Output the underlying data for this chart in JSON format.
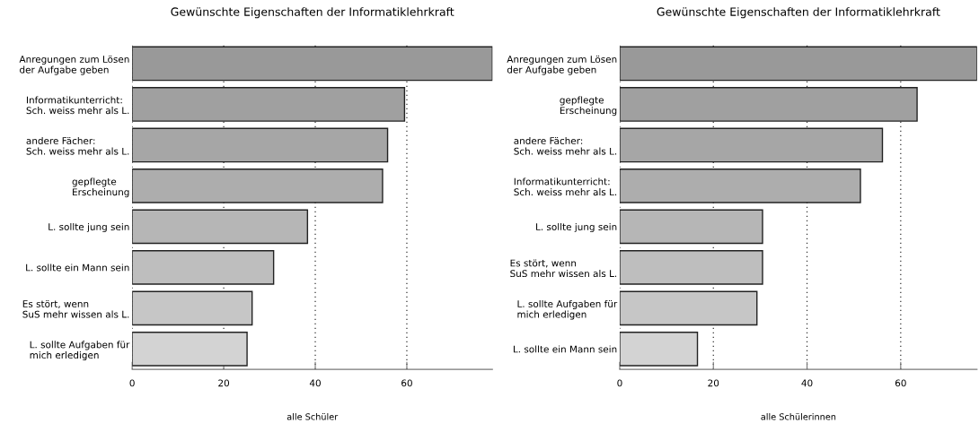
{
  "chart_data": [
    {
      "type": "bar",
      "orientation": "horizontal",
      "title": "Gewünschte Eigenschaften der Informatiklehrkraft",
      "xlabel": "alle Schüler",
      "categories": [
        "Anregungen zum Lösen\nder Aufgabe geben",
        "Informatikunterricht:\nSch. weiss mehr als L.",
        "andere Fächer:\nSch. weiss mehr als L.",
        "gepflegte\nErscheinung",
        "L. sollte jung sein",
        "L. sollte ein Mann sein",
        "Es stört, wenn\nSuS mehr wissen als L.",
        "L. sollte Aufgaben für\nmich erledigen"
      ],
      "values": [
        78.7,
        59.5,
        55.8,
        54.7,
        38.3,
        30.9,
        26.2,
        25.1
      ],
      "colors": [
        "#999999",
        "#a0a0a0",
        "#a6a6a6",
        "#adadad",
        "#b6b6b6",
        "#bebebe",
        "#c6c6c6",
        "#d3d3d3"
      ],
      "xlim": [
        0,
        78.7
      ],
      "xticks": [
        0,
        20,
        40,
        60
      ],
      "grid": "x"
    },
    {
      "type": "bar",
      "orientation": "horizontal",
      "title": "Gewünschte Eigenschaften der Informatiklehrkraft",
      "xlabel": "alle Schülerinnen",
      "categories": [
        "Anregungen zum Lösen\nder Aufgabe geben",
        "gepflegte\nErscheinung",
        "andere Fächer:\nSch. weiss mehr als L.",
        "Informatikunterricht:\nSch. weiss mehr als L.",
        "L. sollte jung sein",
        "Es stört, wenn\nSuS mehr wissen als L.",
        "L. sollte Aufgaben für\nmich erledigen",
        "L. sollte ein Mann sein"
      ],
      "values": [
        76.3,
        63.5,
        56.1,
        51.4,
        30.5,
        30.5,
        29.3,
        16.6
      ],
      "colors": [
        "#999999",
        "#a0a0a0",
        "#a6a6a6",
        "#adadad",
        "#b6b6b6",
        "#bebebe",
        "#c6c6c6",
        "#d3d3d3"
      ],
      "xlim": [
        0,
        76.3
      ],
      "xticks": [
        0,
        20,
        40,
        60
      ],
      "grid": "x"
    }
  ]
}
